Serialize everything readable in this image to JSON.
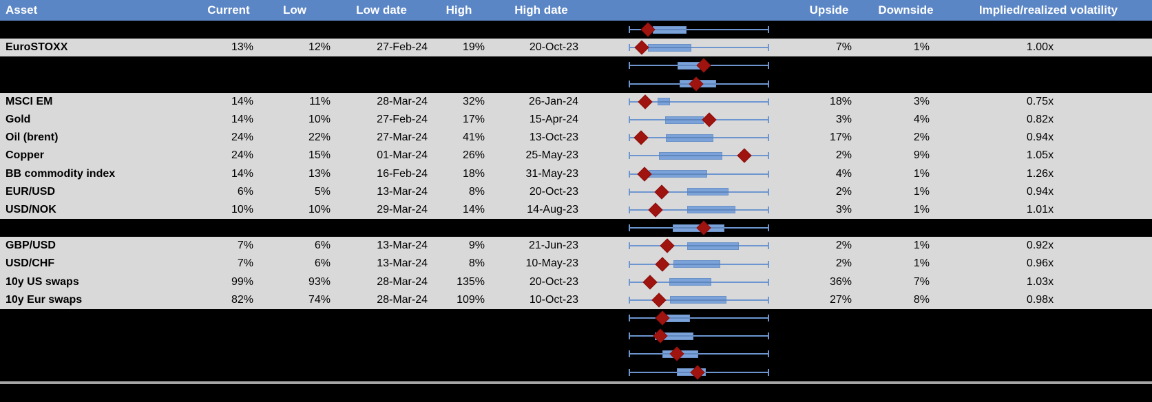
{
  "colors": {
    "header_bg": "#5b86c6",
    "header_text": "#ffffff",
    "row_bg": "#d9d9d9",
    "hidden_bg": "#000000",
    "text": "#000000",
    "whisker": "#6d96d0",
    "box_fill": "#7ca3d9",
    "box_border": "#6991c7",
    "box_midline": "#5f87be",
    "marker": "#a01410",
    "marker_border": "#8a100c",
    "divider": "#a6a6a6",
    "footer_bg": "#000000"
  },
  "chart_data": {
    "type": "table",
    "subtype": "table with per-row horizontal box-and-whisker plots (red diamond = current level within 1-year Low..High range)",
    "columns": [
      "Asset",
      "Current",
      "Low",
      "Low date",
      "High",
      "High date",
      "",
      "Upside",
      "Downside",
      "Implied/realized volatility"
    ],
    "boxplot_layout": {
      "note": "each row's whisker spans the full Low-to-High range normalized to 0..1; box and marker positions are fractions of that range",
      "axis_visible": false,
      "whisker_range": [
        0,
        1
      ]
    },
    "rows": [
      {
        "type": "hidden",
        "asset": "",
        "current": "",
        "low": "",
        "low_date": "",
        "high": "",
        "high_date": "",
        "upside": "",
        "downside": "",
        "implied_realized": "",
        "box": [
          0.172,
          0.412
        ],
        "marker": 0.137
      },
      {
        "type": "asset",
        "asset": "EuroSTOXX",
        "current": "13%",
        "low": "12%",
        "low_date": "27-Feb-24",
        "high": "19%",
        "high_date": "20-Oct-23",
        "upside": "7%",
        "downside": "1%",
        "implied_realized": "1.00x",
        "box": [
          0.137,
          0.446
        ],
        "marker": 0.093
      },
      {
        "type": "hidden",
        "asset": "",
        "current": "",
        "low": "",
        "low_date": "",
        "high": "",
        "high_date": "",
        "upside": "",
        "downside": "",
        "implied_realized": "",
        "box": [
          0.348,
          0.559
        ],
        "marker": 0.534
      },
      {
        "type": "hidden",
        "asset": "",
        "current": "",
        "low": "",
        "low_date": "",
        "high": "",
        "high_date": "",
        "upside": "",
        "downside": "",
        "implied_realized": "",
        "box": [
          0.363,
          0.623
        ],
        "marker": 0.48
      },
      {
        "type": "asset",
        "asset": "MSCI EM",
        "current": "14%",
        "low": "11%",
        "low_date": "28-Mar-24",
        "high": "32%",
        "high_date": "26-Jan-24",
        "upside": "18%",
        "downside": "3%",
        "implied_realized": "0.75x",
        "box": [
          0.206,
          0.294
        ],
        "marker": 0.118
      },
      {
        "type": "asset",
        "asset": "Gold",
        "current": "14%",
        "low": "10%",
        "low_date": "27-Feb-24",
        "high": "17%",
        "high_date": "15-Apr-24",
        "upside": "3%",
        "downside": "4%",
        "implied_realized": "0.82x",
        "box": [
          0.26,
          0.534
        ],
        "marker": 0.574
      },
      {
        "type": "asset",
        "asset": "Oil (brent)",
        "current": "24%",
        "low": "22%",
        "low_date": "27-Mar-24",
        "high": "41%",
        "high_date": "13-Oct-23",
        "upside": "17%",
        "downside": "2%",
        "implied_realized": "0.94x",
        "box": [
          0.265,
          0.603
        ],
        "marker": 0.088
      },
      {
        "type": "asset",
        "asset": "Copper",
        "current": "24%",
        "low": "15%",
        "low_date": "01-Mar-24",
        "high": "26%",
        "high_date": "25-May-23",
        "upside": "2%",
        "downside": "9%",
        "implied_realized": "1.05x",
        "box": [
          0.216,
          0.667
        ],
        "marker": 0.824
      },
      {
        "type": "asset",
        "asset": "BB commodity index",
        "current": "14%",
        "low": "13%",
        "low_date": "16-Feb-24",
        "high": "18%",
        "high_date": "31-May-23",
        "upside": "4%",
        "downside": "1%",
        "implied_realized": "1.26x",
        "box": [
          0.142,
          0.559
        ],
        "marker": 0.113
      },
      {
        "type": "asset",
        "asset": "EUR/USD",
        "current": "6%",
        "low": "5%",
        "low_date": "13-Mar-24",
        "high": "8%",
        "high_date": "20-Oct-23",
        "upside": "2%",
        "downside": "1%",
        "implied_realized": "0.94x",
        "box": [
          0.417,
          0.711
        ],
        "marker": 0.235
      },
      {
        "type": "asset",
        "asset": "USD/NOK",
        "current": "10%",
        "low": "10%",
        "low_date": "29-Mar-24",
        "high": "14%",
        "high_date": "14-Aug-23",
        "upside": "3%",
        "downside": "1%",
        "implied_realized": "1.01x",
        "box": [
          0.417,
          0.76
        ],
        "marker": 0.191
      },
      {
        "type": "hidden",
        "asset": "",
        "current": "",
        "low": "",
        "low_date": "",
        "high": "",
        "high_date": "",
        "upside": "",
        "downside": "",
        "implied_realized": "",
        "box": [
          0.314,
          0.681
        ],
        "marker": 0.534
      },
      {
        "type": "asset",
        "asset": "GBP/USD",
        "current": "7%",
        "low": "6%",
        "low_date": "13-Mar-24",
        "high": "9%",
        "high_date": "21-Jun-23",
        "upside": "2%",
        "downside": "1%",
        "implied_realized": "0.92x",
        "box": [
          0.417,
          0.784
        ],
        "marker": 0.275
      },
      {
        "type": "asset",
        "asset": "USD/CHF",
        "current": "7%",
        "low": "6%",
        "low_date": "13-Mar-24",
        "high": "8%",
        "high_date": "10-May-23",
        "upside": "2%",
        "downside": "1%",
        "implied_realized": "0.96x",
        "box": [
          0.319,
          0.652
        ],
        "marker": 0.24
      },
      {
        "type": "asset",
        "asset": "10y US swaps",
        "current": "99%",
        "low": "93%",
        "low_date": "28-Mar-24",
        "high": "135%",
        "high_date": "20-Oct-23",
        "upside": "36%",
        "downside": "7%",
        "implied_realized": "1.03x",
        "box": [
          0.289,
          0.588
        ],
        "marker": 0.152
      },
      {
        "type": "asset",
        "asset": "10y Eur swaps",
        "current": "82%",
        "low": "74%",
        "low_date": "28-Mar-24",
        "high": "109%",
        "high_date": "10-Oct-23",
        "upside": "27%",
        "downside": "8%",
        "implied_realized": "0.98x",
        "box": [
          0.294,
          0.696
        ],
        "marker": 0.216
      },
      {
        "type": "hidden",
        "asset": "",
        "current": "",
        "low": "",
        "low_date": "",
        "high": "",
        "high_date": "",
        "upside": "",
        "downside": "",
        "implied_realized": "",
        "box": [
          0.255,
          0.436
        ],
        "marker": 0.24
      },
      {
        "type": "hidden",
        "asset": "",
        "current": "",
        "low": "",
        "low_date": "",
        "high": "",
        "high_date": "",
        "upside": "",
        "downside": "",
        "implied_realized": "",
        "box": [
          0.186,
          0.461
        ],
        "marker": 0.225
      },
      {
        "type": "hidden",
        "asset": "",
        "current": "",
        "low": "",
        "low_date": "",
        "high": "",
        "high_date": "",
        "upside": "",
        "downside": "",
        "implied_realized": "",
        "box": [
          0.24,
          0.495
        ],
        "marker": 0.343
      },
      {
        "type": "hidden",
        "asset": "",
        "current": "",
        "low": "",
        "low_date": "",
        "high": "",
        "high_date": "",
        "upside": "",
        "downside": "",
        "implied_realized": "",
        "box": [
          0.343,
          0.549
        ],
        "marker": 0.49
      }
    ]
  }
}
